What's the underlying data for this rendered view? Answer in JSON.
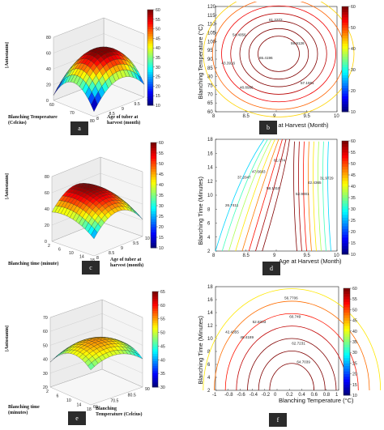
{
  "panels": {
    "a": {
      "label": "a",
      "zlabel": "[Antosianin]",
      "xlabel": "Blanching Temperature (Celcius)",
      "ylabel": "Age of tuber at harvest (month)"
    },
    "b": {
      "label": "b",
      "xlabel": "Age at Harvest (Month)",
      "ylabel": "Blanching Temperature (°C)"
    },
    "c": {
      "label": "c",
      "zlabel": "[Antosianin]",
      "xlabel": "Blanching time (minute)",
      "ylabel": "Age of tuber at harvest (month)"
    },
    "d": {
      "label": "d",
      "xlabel": "Age at Harvest (Month)",
      "ylabel": "Blanching Time (Minutes)"
    },
    "e": {
      "label": "e",
      "zlabel": "[Antosianin]",
      "xlabel": "Blanching time (minutes)",
      "ylabel": "Blanching Temperature (Celcius)"
    },
    "f": {
      "label": "f",
      "xlabel": "Blanching Temperature (°C)",
      "ylabel": "Blanching Time (Minutes)"
    }
  },
  "chart_data": [
    {
      "panel": "a",
      "type": "surface",
      "zlabel": "[Antosianin]",
      "xlabel": "Blanching Temperature (Celcius)",
      "ylabel": "Age of tuber at harvest (month)",
      "x_ticks": [
        60,
        70,
        80
      ],
      "y_ticks": [
        8,
        8.5,
        9,
        9.5,
        10
      ],
      "z_ticks": [
        0,
        20,
        40,
        60,
        80
      ],
      "zlim": [
        0,
        80
      ],
      "colorbar": {
        "range": [
          10,
          60
        ],
        "ticks": [
          10,
          15,
          20,
          25,
          30,
          35,
          40,
          45,
          50,
          55,
          60
        ]
      }
    },
    {
      "panel": "b",
      "type": "contour",
      "xlabel": "Age at Harvest (Month)",
      "ylabel": "Blanching Temperature (°C)",
      "x_ticks": [
        8,
        8.5,
        9,
        9.5,
        10
      ],
      "y_ticks": [
        60,
        65,
        70,
        75,
        80,
        85,
        90,
        95,
        100,
        105,
        110,
        115,
        120
      ],
      "levels": [
        43.3916,
        48.8986,
        54.4056,
        57.1591,
        59.9126,
        61.2272,
        65.4196
      ],
      "colorbar": {
        "range": [
          10,
          60
        ],
        "ticks": [
          10,
          20,
          30,
          40,
          50,
          60
        ]
      }
    },
    {
      "panel": "c",
      "type": "surface",
      "zlabel": "[Antosianin]",
      "xlabel": "Blanching time (minute)",
      "ylabel": "Age of tuber at harvest (month)",
      "x_ticks": [
        2,
        6,
        10,
        14,
        18
      ],
      "y_ticks": [
        8,
        8.5,
        9,
        9.5,
        10
      ],
      "z_ticks": [
        0,
        20,
        40,
        60,
        80
      ],
      "zlim": [
        0,
        80
      ],
      "colorbar": {
        "range": [
          10,
          60
        ],
        "ticks": [
          10,
          15,
          20,
          25,
          30,
          35,
          40,
          45,
          50,
          55,
          60
        ]
      }
    },
    {
      "panel": "d",
      "type": "contour",
      "xlabel": "Age at Harvest (Month)",
      "ylabel": "Blanching Time (Minutes)",
      "x_ticks": [
        8,
        8.5,
        9,
        9.5,
        10
      ],
      "y_ticks": [
        2,
        4,
        6,
        8,
        10,
        12,
        14,
        16,
        18
      ],
      "levels": [
        26.7411,
        31.9729,
        37.2047,
        42.4365,
        47.6683,
        52.9001,
        58.1319,
        61.074
      ],
      "colorbar": {
        "range": [
          10,
          60
        ],
        "ticks": [
          10,
          15,
          20,
          25,
          30,
          35,
          40,
          45,
          50,
          55,
          60
        ]
      }
    },
    {
      "panel": "e",
      "type": "surface",
      "zlabel": "[Antosianin]",
      "xlabel": "Blanching time (minutes)",
      "ylabel": "Blanching Temperature (Celcius)",
      "x_ticks": [
        2,
        6,
        10,
        14,
        18
      ],
      "y_ticks": [
        60,
        70.5,
        80.5,
        90
      ],
      "z_ticks": [
        20,
        30,
        40,
        50,
        60,
        70
      ],
      "zlim": [
        20,
        70
      ],
      "colorbar": {
        "range": [
          30,
          65
        ],
        "ticks": [
          30,
          35,
          40,
          45,
          50,
          55,
          60,
          65
        ]
      }
    },
    {
      "panel": "f",
      "type": "contour",
      "xlabel": "Blanching Temperature (°C)",
      "ylabel": "Blanching Time (Minutes)",
      "x_ticks": [
        -1,
        -0.8,
        -0.6,
        -0.4,
        -0.2,
        0,
        0.2,
        0.4,
        0.6,
        0.8,
        1
      ],
      "y_ticks": [
        2,
        4,
        6,
        8,
        10,
        12,
        14,
        16,
        18
      ],
      "levels": [
        42.4355,
        48.4189,
        52.8203,
        56.7706,
        60.749,
        62.7231,
        64.7039
      ],
      "colorbar": {
        "range": [
          10,
          60
        ],
        "ticks": [
          10,
          15,
          20,
          25,
          30,
          35,
          40,
          45,
          50,
          55,
          60
        ]
      }
    }
  ]
}
